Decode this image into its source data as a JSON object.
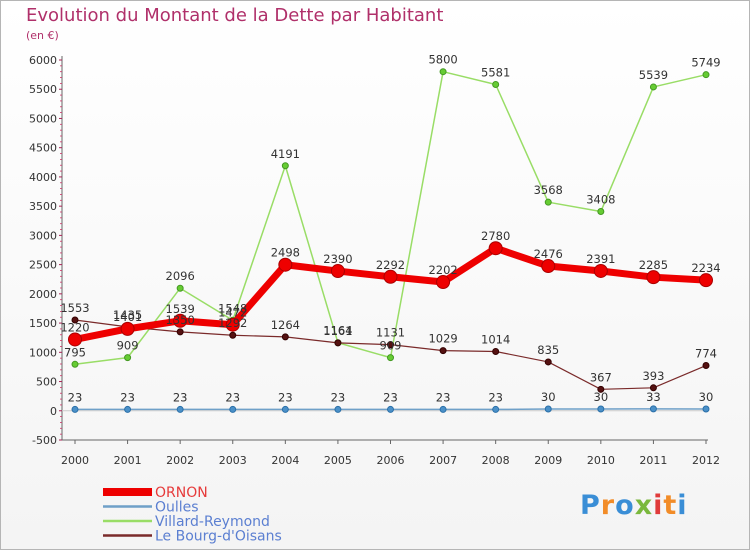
{
  "page": {
    "title": "Evolution du Montant de la Dette par Habitant",
    "unit": "(en €)",
    "logo": {
      "text": "Proxiti",
      "letter_colors": [
        "#3a8ed6",
        "#f28c28",
        "#3a8ed6",
        "#7ab83d",
        "#e03b3b",
        "#f28c28",
        "#3a8ed6"
      ]
    }
  },
  "chart_data": {
    "type": "line",
    "title": "Evolution du Montant de la Dette par Habitant",
    "subtitle": "(en €)",
    "xlabel": "",
    "ylabel": "",
    "categories": [
      "2000",
      "2001",
      "2002",
      "2003",
      "2004",
      "2005",
      "2006",
      "2007",
      "2008",
      "2009",
      "2010",
      "2011",
      "2012"
    ],
    "ylim": [
      -500,
      6000
    ],
    "yticks": [
      -500,
      0,
      500,
      1000,
      1500,
      2000,
      2500,
      3000,
      3500,
      4000,
      4500,
      5000,
      5500,
      6000
    ],
    "grid": false,
    "legend_position": "bottom-left",
    "series": [
      {
        "name": "ORNON",
        "color": "#ee0000",
        "values": [
          1220,
          1401,
          1539,
          1472,
          2498,
          2390,
          2292,
          2202,
          2780,
          2476,
          2391,
          2285,
          2234
        ]
      },
      {
        "name": "Oulles",
        "color": "#6fa0c8",
        "values": [
          23,
          23,
          23,
          23,
          23,
          23,
          23,
          23,
          23,
          30,
          30,
          33,
          30
        ]
      },
      {
        "name": "Villard-Reymond",
        "color": "#99dd66",
        "values": [
          795,
          909,
          2096,
          1548,
          4191,
          1164,
          909,
          5800,
          5581,
          3568,
          3408,
          5539,
          5749
        ]
      },
      {
        "name": "Le Bourg-d'Oisans",
        "color": "#7a2a2a",
        "values": [
          1553,
          1435,
          1350,
          1292,
          1264,
          1161,
          1131,
          1029,
          1014,
          835,
          367,
          393,
          774
        ]
      }
    ]
  }
}
